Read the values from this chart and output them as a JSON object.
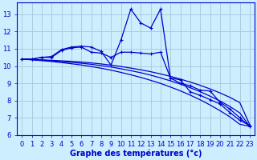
{
  "background_color": "#cceeff",
  "grid_color": "#aaccdd",
  "line_color": "#0000cc",
  "xlabel": "Graphe des températures (°c)",
  "xlabel_fontsize": 7,
  "tick_fontsize": 6,
  "xlim": [
    -0.5,
    23.5
  ],
  "ylim": [
    6.0,
    13.7
  ],
  "yticks": [
    6,
    7,
    8,
    9,
    10,
    11,
    12,
    13
  ],
  "xticks": [
    0,
    1,
    2,
    3,
    4,
    5,
    6,
    7,
    8,
    9,
    10,
    11,
    12,
    13,
    14,
    15,
    16,
    17,
    18,
    19,
    20,
    21,
    22,
    23
  ],
  "series": [
    {
      "x": [
        0,
        1,
        2,
        3,
        4,
        5,
        6,
        7,
        8,
        9,
        10,
        11,
        12,
        13,
        14,
        15,
        16,
        17,
        18,
        19,
        20,
        21,
        22,
        23
      ],
      "y": [
        10.4,
        10.4,
        10.5,
        10.55,
        10.95,
        11.1,
        11.15,
        11.1,
        10.85,
        10.05,
        11.5,
        13.3,
        12.5,
        12.2,
        13.3,
        9.3,
        9.2,
        8.5,
        8.3,
        8.05,
        7.8,
        7.3,
        6.85,
        6.55
      ],
      "marker": "+"
    },
    {
      "x": [
        0,
        1,
        2,
        3,
        4,
        5,
        6,
        7,
        8,
        9,
        10,
        11,
        12,
        13,
        14,
        15,
        16,
        17,
        18,
        19,
        20,
        21,
        22,
        23
      ],
      "y": [
        10.4,
        10.4,
        10.5,
        10.5,
        10.9,
        11.05,
        11.1,
        10.8,
        10.75,
        10.5,
        10.8,
        10.8,
        10.75,
        10.7,
        10.8,
        9.3,
        9.0,
        8.85,
        8.6,
        8.55,
        7.9,
        7.5,
        7.0,
        6.5
      ],
      "marker": "+"
    },
    {
      "x": [
        0,
        1,
        2,
        3,
        4,
        5,
        6,
        7,
        8,
        9,
        10,
        11,
        12,
        13,
        14,
        15,
        16,
        17,
        18,
        19,
        20,
        21,
        22,
        23
      ],
      "y": [
        10.4,
        10.38,
        10.36,
        10.33,
        10.3,
        10.27,
        10.23,
        10.18,
        10.12,
        10.05,
        9.97,
        9.88,
        9.78,
        9.67,
        9.54,
        9.4,
        9.24,
        9.07,
        8.88,
        8.67,
        8.44,
        8.18,
        7.88,
        6.6
      ],
      "marker": null
    },
    {
      "x": [
        0,
        1,
        2,
        3,
        4,
        5,
        6,
        7,
        8,
        9,
        10,
        11,
        12,
        13,
        14,
        15,
        16,
        17,
        18,
        19,
        20,
        21,
        22,
        23
      ],
      "y": [
        10.4,
        10.37,
        10.34,
        10.3,
        10.26,
        10.21,
        10.16,
        10.1,
        10.02,
        9.94,
        9.84,
        9.73,
        9.61,
        9.47,
        9.31,
        9.14,
        8.95,
        8.74,
        8.51,
        8.25,
        7.97,
        7.65,
        7.28,
        6.5
      ],
      "marker": null
    },
    {
      "x": [
        0,
        1,
        2,
        3,
        4,
        5,
        6,
        7,
        8,
        9,
        10,
        11,
        12,
        13,
        14,
        15,
        16,
        17,
        18,
        19,
        20,
        21,
        22,
        23
      ],
      "y": [
        10.4,
        10.36,
        10.31,
        10.26,
        10.2,
        10.13,
        10.06,
        9.97,
        9.87,
        9.76,
        9.63,
        9.49,
        9.34,
        9.17,
        8.99,
        8.78,
        8.56,
        8.31,
        8.04,
        7.74,
        7.41,
        7.05,
        6.62,
        6.5
      ],
      "marker": null
    }
  ]
}
